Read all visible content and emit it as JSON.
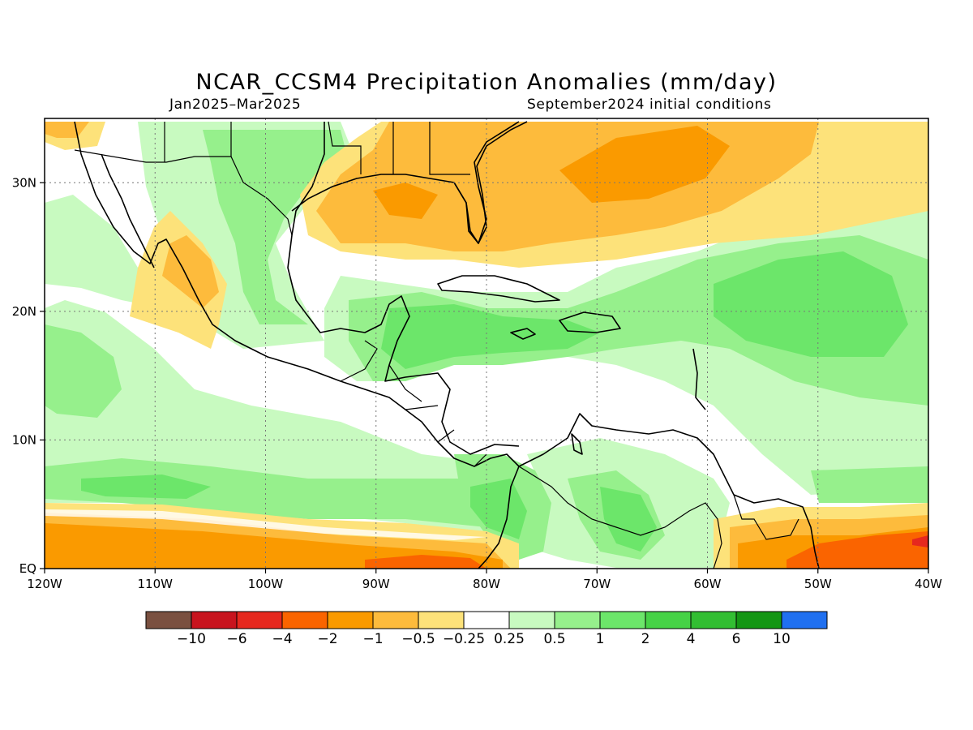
{
  "title": "NCAR_CCSM4 Precipitation Anomalies (mm/day)",
  "period": "Jan2025–Mar2025",
  "init": "September2024 initial conditions",
  "map": {
    "lon_range": [
      -120,
      -40
    ],
    "lat_range": [
      0,
      35
    ],
    "x_ticks": [
      {
        "lon": -120,
        "label": "120W"
      },
      {
        "lon": -110,
        "label": "110W"
      },
      {
        "lon": -100,
        "label": "100W"
      },
      {
        "lon": -90,
        "label": "90W"
      },
      {
        "lon": -80,
        "label": "80W"
      },
      {
        "lon": -70,
        "label": "70W"
      },
      {
        "lon": -60,
        "label": "60W"
      },
      {
        "lon": -50,
        "label": "50W"
      },
      {
        "lon": -40,
        "label": "40W"
      }
    ],
    "y_ticks": [
      {
        "lat": 0,
        "label": "EQ"
      },
      {
        "lat": 10,
        "label": "10N"
      },
      {
        "lat": 20,
        "label": "20N"
      },
      {
        "lat": 30,
        "label": "30N"
      }
    ],
    "grid": "dotted"
  },
  "colorbar": {
    "colors": [
      "#7a5040",
      "#c8141e",
      "#e6281e",
      "#fa6400",
      "#fa9a00",
      "#fdbb3c",
      "#fde27a",
      "#ffffff",
      "#c8fac0",
      "#96f08c",
      "#6ce66a",
      "#46d246",
      "#32be32",
      "#149614",
      "#2070f0"
    ],
    "labels": [
      "−10",
      "−6",
      "−4",
      "−2",
      "−1",
      "−0.5",
      "−0.25",
      "0.25",
      "0.5",
      "1",
      "2",
      "4",
      "6",
      "10"
    ]
  }
}
